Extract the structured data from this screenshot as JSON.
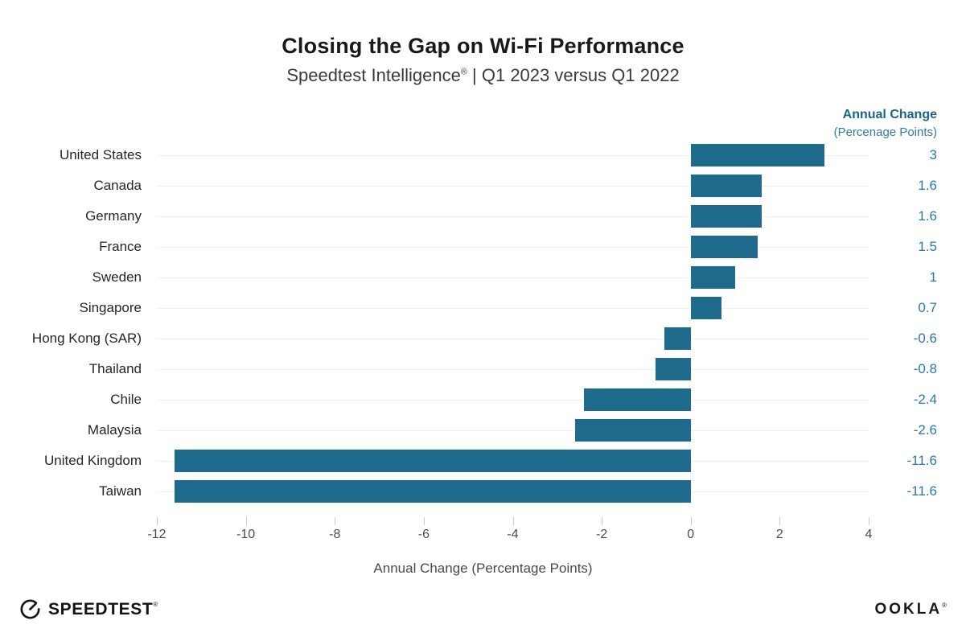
{
  "header": {
    "title": "Closing the Gap on Wi-Fi Performance",
    "subtitle_product": "Speedtest Intelligence",
    "subtitle_reg": "®",
    "subtitle_rest": " | Q1 2023 versus Q1 2022"
  },
  "value_column": {
    "heading": "Annual Change",
    "subheading": "(Percenage Points)"
  },
  "chart_data": {
    "type": "bar",
    "orientation": "horizontal",
    "title": "Closing the Gap on Wi-Fi Performance",
    "subtitle": "Speedtest Intelligence® | Q1 2023 versus Q1 2022",
    "categories": [
      "United States",
      "Canada",
      "Germany",
      "France",
      "Sweden",
      "Singapore",
      "Hong Kong (SAR)",
      "Thailand",
      "Chile",
      "Malaysia",
      "United Kingdom",
      "Taiwan"
    ],
    "values": [
      3,
      1.6,
      1.6,
      1.5,
      1,
      0.7,
      -0.6,
      -0.8,
      -2.4,
      -2.6,
      -11.6,
      -11.6
    ],
    "value_labels": [
      "3",
      "1.6",
      "1.6",
      "1.5",
      "1",
      "0.7",
      "-0.6",
      "-0.8",
      "-2.4",
      "-2.6",
      "-11.6",
      "-11.6"
    ],
    "xlabel": "Annual Change (Percentage Points)",
    "xlim": [
      -12,
      4
    ],
    "xticks": [
      -12,
      -10,
      -8,
      -6,
      -4,
      -2,
      0,
      2,
      4
    ],
    "grid": "horizontal-row-lines",
    "legend": "none",
    "bar_color": "#1e6b8d",
    "value_text_color": "#2a79a4",
    "gridline_color": "#efefef"
  },
  "footer": {
    "speedtest_label": "SPEEDTEST",
    "speedtest_reg": "®",
    "ookla_label": "OOKLA",
    "ookla_reg": "®"
  }
}
